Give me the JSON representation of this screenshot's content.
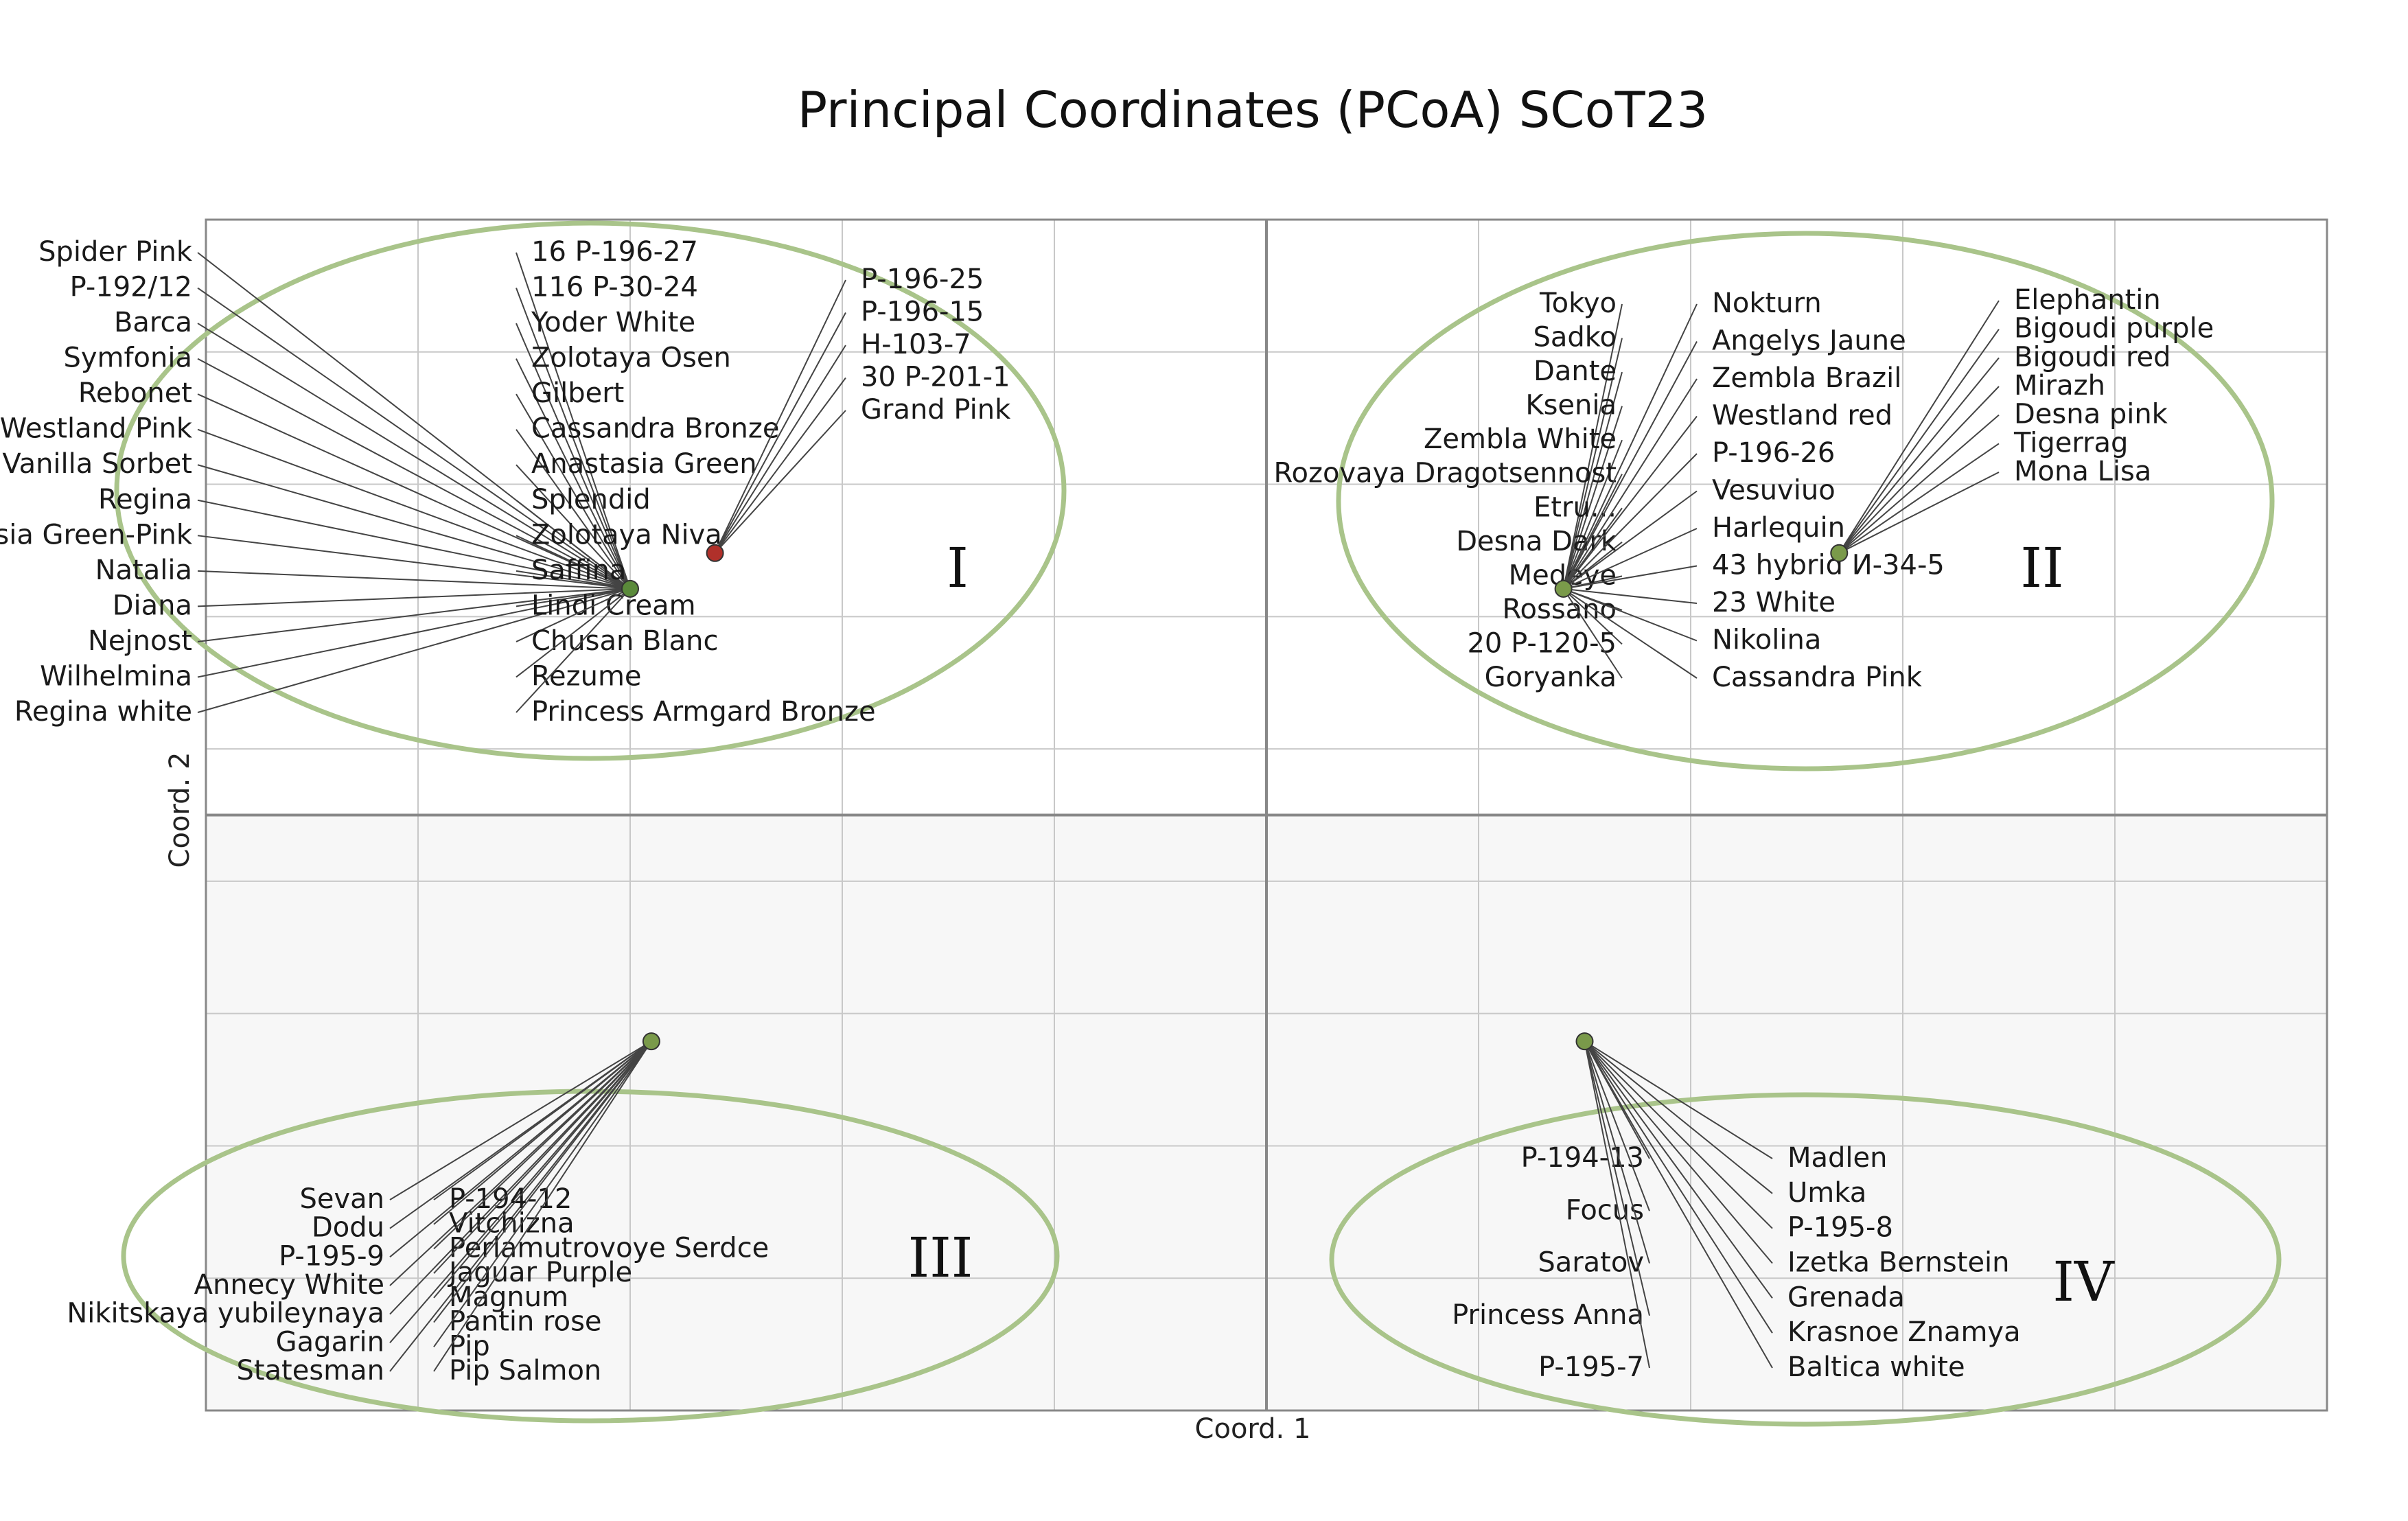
{
  "chart_data": {
    "type": "scatter",
    "title": "Principal Coordinates (PCoA) SCoT23",
    "xlabel": "Coord. 1",
    "ylabel": "Coord. 2",
    "grid": true,
    "groups": [
      {
        "name": "I",
        "hubs": [
          {
            "point": [
              -0.3,
              0.19
            ],
            "color": "#5a8a3a",
            "labels": [
              "Spider Pink",
              "16 P-196-27",
              "P-192/12",
              "116 P-30-24",
              "Barca",
              "Yoder White",
              "Symfonia",
              "Zolotaya Osen",
              "Rebonet",
              "Gilbert",
              "Westland Pink",
              "Cassandra Bronze",
              "Vanilla Sorbet",
              "Anastasia Green",
              "Regina",
              "Splendid",
              "Anastasia Green-Pink",
              "Zolotaya Niva",
              "Natalia",
              "Saffina",
              "Diana",
              "Lindi Cream",
              "Nejnost",
              "Chusan Blanc",
              "Wilhelmina",
              "Rezume",
              "Regina white",
              "Princess Armgard Bronze"
            ]
          },
          {
            "point": [
              -0.26,
              0.22
            ],
            "color": "#b0302a",
            "labels": [
              "P-196-25",
              "P-196-15",
              "H-103-7",
              "30 P-201-1",
              "Grand Pink"
            ]
          }
        ]
      },
      {
        "name": "II",
        "hubs": [
          {
            "point": [
              0.14,
              0.19
            ],
            "color": "#7a9a4a",
            "labels": [
              "Tokyo",
              "Nokturn",
              "Sadko",
              "Angelys Jaune",
              "Dante",
              "Zembla Brazil",
              "Ksenia",
              "Westland red",
              "Zembla White",
              "P-196-26",
              "Rozovaya Dragotsennost",
              "Vesuviuo",
              "Etru...",
              "Harlequin",
              "Desna Dark",
              "43 hybrid И-34-5",
              "Medeye",
              "23 White",
              "Rossano",
              "Nikolina",
              "20 P-120-5",
              "Cassandra Pink",
              "Goryanka"
            ]
          },
          {
            "point": [
              0.27,
              0.22
            ],
            "color": "#7a9a4a",
            "labels": [
              "Elephantin",
              "Bigoudi purple",
              "Bigoudi red",
              "Mirazh",
              "Desna pink",
              "Tigerrag",
              "Mona Lisa"
            ]
          }
        ]
      },
      {
        "name": "III",
        "hubs": [
          {
            "point": [
              -0.29,
              -0.19
            ],
            "color": "#7a9a4a",
            "labels": [
              "Sevan",
              "P-194-12",
              "Dodu",
              "Vitchizna",
              "P-195-9",
              "Perlamutrovoye Serdce",
              "Annecy White",
              "Jaguar Purple",
              "Nikitskaya yubileynaya",
              "Magnum",
              "Gagarin",
              "Pantin rose",
              "Statesman",
              "Pip",
              "Pip Salmon"
            ]
          }
        ]
      },
      {
        "name": "IV",
        "hubs": [
          {
            "point": [
              0.15,
              -0.19
            ],
            "color": "#7a9a4a",
            "labels": [
              "P-194-13",
              "Madlen",
              "Focus",
              "Umka",
              "Saratov",
              "P-195-8",
              "Princess Anna",
              "Izetka Bernstein",
              "P-195-7",
              "Grenada",
              "Krasnoe Znamya",
              "Baltica white"
            ]
          }
        ]
      }
    ],
    "colors": {
      "ellipse": "#a9c48a",
      "grid": "#c8c8c8",
      "quadrant": "#888888",
      "plot_bg": "#f7f7f7",
      "leader": "#444444"
    }
  }
}
